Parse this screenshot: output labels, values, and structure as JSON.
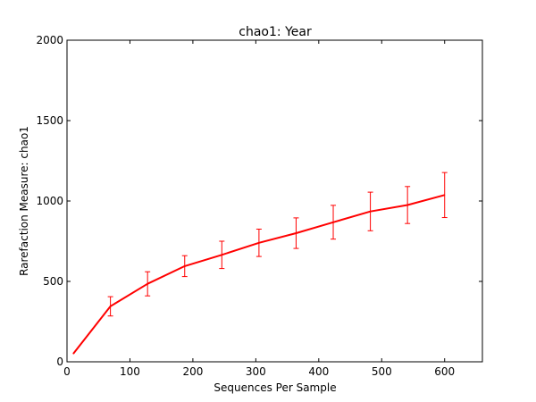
{
  "chart_data": {
    "type": "line",
    "title": "chao1: Year",
    "xlabel": "Sequences Per Sample",
    "ylabel": "Rarefaction Measure: chao1",
    "xlim": [
      0,
      660
    ],
    "ylim": [
      0,
      2000
    ],
    "xticks": [
      0,
      100,
      200,
      300,
      400,
      500,
      600
    ],
    "yticks": [
      0,
      500,
      1000,
      1500,
      2000
    ],
    "grid": false,
    "colors": {
      "series": "#ff0000",
      "axes": "#000000",
      "background": "#ffffff"
    },
    "series": [
      {
        "x": [
          10,
          69,
          128,
          187,
          246,
          305,
          364,
          423,
          482,
          541,
          600
        ],
        "y": [
          50,
          345,
          485,
          595,
          665,
          740,
          800,
          868,
          935,
          975,
          1037
        ],
        "err_low": [
          0,
          60,
          75,
          65,
          85,
          85,
          95,
          105,
          120,
          115,
          140
        ],
        "err_high": [
          0,
          60,
          75,
          65,
          85,
          85,
          95,
          105,
          120,
          115,
          140
        ]
      }
    ]
  }
}
